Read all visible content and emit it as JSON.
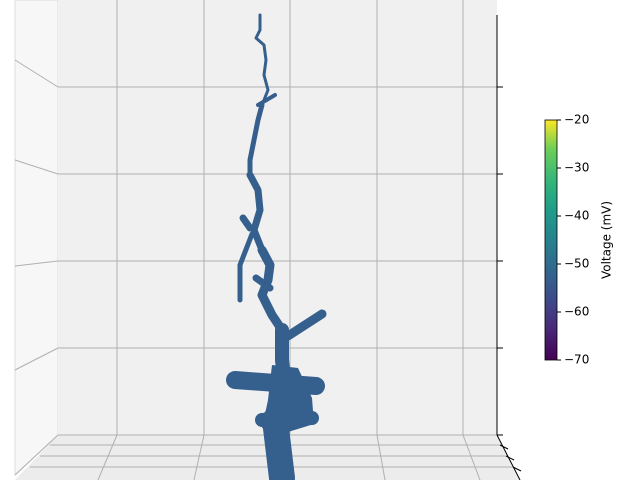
{
  "chart_data": {
    "type": "morphology",
    "color": "#355f8d",
    "colormap": "viridis",
    "colorbar": {
      "label": "Voltage (mV)",
      "lim": [
        -70,
        -20
      ],
      "ticks": [
        {
          "value": -70,
          "label": "−70"
        },
        {
          "value": -60,
          "label": "−60"
        },
        {
          "value": -50,
          "label": "−50"
        },
        {
          "value": -40,
          "label": "−40"
        },
        {
          "value": -30,
          "label": "−30"
        },
        {
          "value": -20,
          "label": "−20"
        }
      ]
    }
  }
}
